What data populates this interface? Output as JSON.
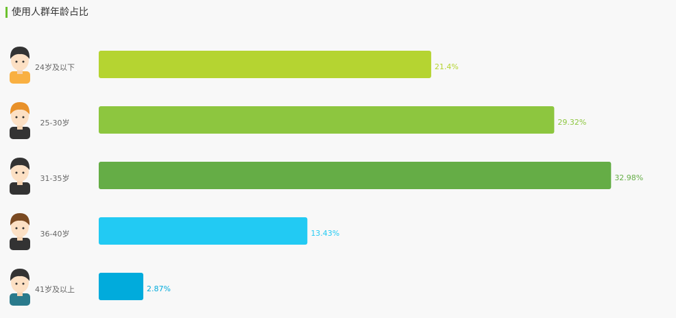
{
  "chart_data": {
    "type": "bar",
    "orientation": "horizontal",
    "title": "使用人群年龄占比",
    "categories": [
      "24岁及以下",
      "25-30岁",
      "31-35岁",
      "36-40岁",
      "41岁及以上"
    ],
    "values": [
      21.4,
      29.32,
      32.98,
      13.43,
      2.87
    ],
    "value_labels": [
      "21.4%",
      "29.32%",
      "32.98%",
      "13.43%",
      "2.87%"
    ],
    "colors": [
      "#b5d431",
      "#8dc63f",
      "#65ad46",
      "#22caf3",
      "#01abdc"
    ]
  }
}
